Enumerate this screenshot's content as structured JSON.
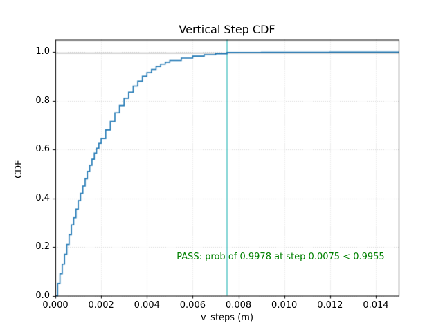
{
  "chart_data": {
    "type": "line",
    "subtype": "step-cdf",
    "title": "Vertical Step CDF",
    "xlabel": "v_steps (m)",
    "ylabel": "CDF",
    "xlim": [
      0,
      0.015
    ],
    "ylim": [
      0,
      1.05
    ],
    "grid": true,
    "legend": "none",
    "x_ticks": {
      "values": [
        0,
        0.002,
        0.004,
        0.006,
        0.008,
        0.01,
        0.012,
        0.014
      ],
      "labels": [
        "0.000",
        "0.002",
        "0.004",
        "0.006",
        "0.008",
        "0.010",
        "0.012",
        "0.014"
      ]
    },
    "y_ticks": {
      "values": [
        0.0,
        0.2,
        0.4,
        0.6,
        0.8,
        1.0
      ],
      "labels": [
        "0.0",
        "0.2",
        "0.4",
        "0.6",
        "0.8",
        "1.0"
      ]
    },
    "colors": {
      "background": "#ffffff",
      "spine": "#000000",
      "grid": "#d9d9d9"
    },
    "series": [
      {
        "name": "empirical-cdf",
        "color": "#1f77b4",
        "x": [
          0,
          0.0001,
          0.0002,
          0.0003,
          0.0004,
          0.0005,
          0.0006,
          0.0007,
          0.0008,
          0.0009,
          0.001,
          0.0011,
          0.0012,
          0.0013,
          0.0014,
          0.0015,
          0.0016,
          0.0017,
          0.0018,
          0.0019,
          0.002,
          0.0022,
          0.0024,
          0.0026,
          0.0028,
          0.003,
          0.0032,
          0.0034,
          0.0036,
          0.0038,
          0.004,
          0.0042,
          0.0044,
          0.0046,
          0.0048,
          0.005,
          0.0055,
          0.006,
          0.0065,
          0.007,
          0.0075,
          0.008,
          0.009,
          0.01,
          0.012,
          0.015
        ],
        "y": [
          0,
          0.05,
          0.09,
          0.13,
          0.17,
          0.21,
          0.25,
          0.29,
          0.32,
          0.355,
          0.39,
          0.42,
          0.45,
          0.48,
          0.51,
          0.535,
          0.56,
          0.585,
          0.605,
          0.625,
          0.645,
          0.68,
          0.715,
          0.75,
          0.78,
          0.81,
          0.835,
          0.86,
          0.88,
          0.9,
          0.915,
          0.928,
          0.94,
          0.95,
          0.958,
          0.965,
          0.975,
          0.983,
          0.989,
          0.993,
          0.9978,
          0.998,
          0.9985,
          0.999,
          0.9995,
          1.0
        ]
      }
    ],
    "reference_lines": [
      {
        "name": "threshold-hline",
        "orientation": "horizontal",
        "value": 0.9955,
        "color": "#8b8b8b"
      },
      {
        "name": "step-vline",
        "orientation": "vertical",
        "value": 0.0075,
        "color": "#3fbfbf"
      }
    ],
    "annotation": {
      "text": "PASS: prob of 0.9978 at step 0.0075 < 0.9955",
      "x": 0.0053,
      "y": 0.16,
      "color": "#008000"
    },
    "key_values": {
      "prob_at_step": 0.9978,
      "step": 0.0075,
      "threshold": 0.9955,
      "result": "PASS"
    }
  }
}
